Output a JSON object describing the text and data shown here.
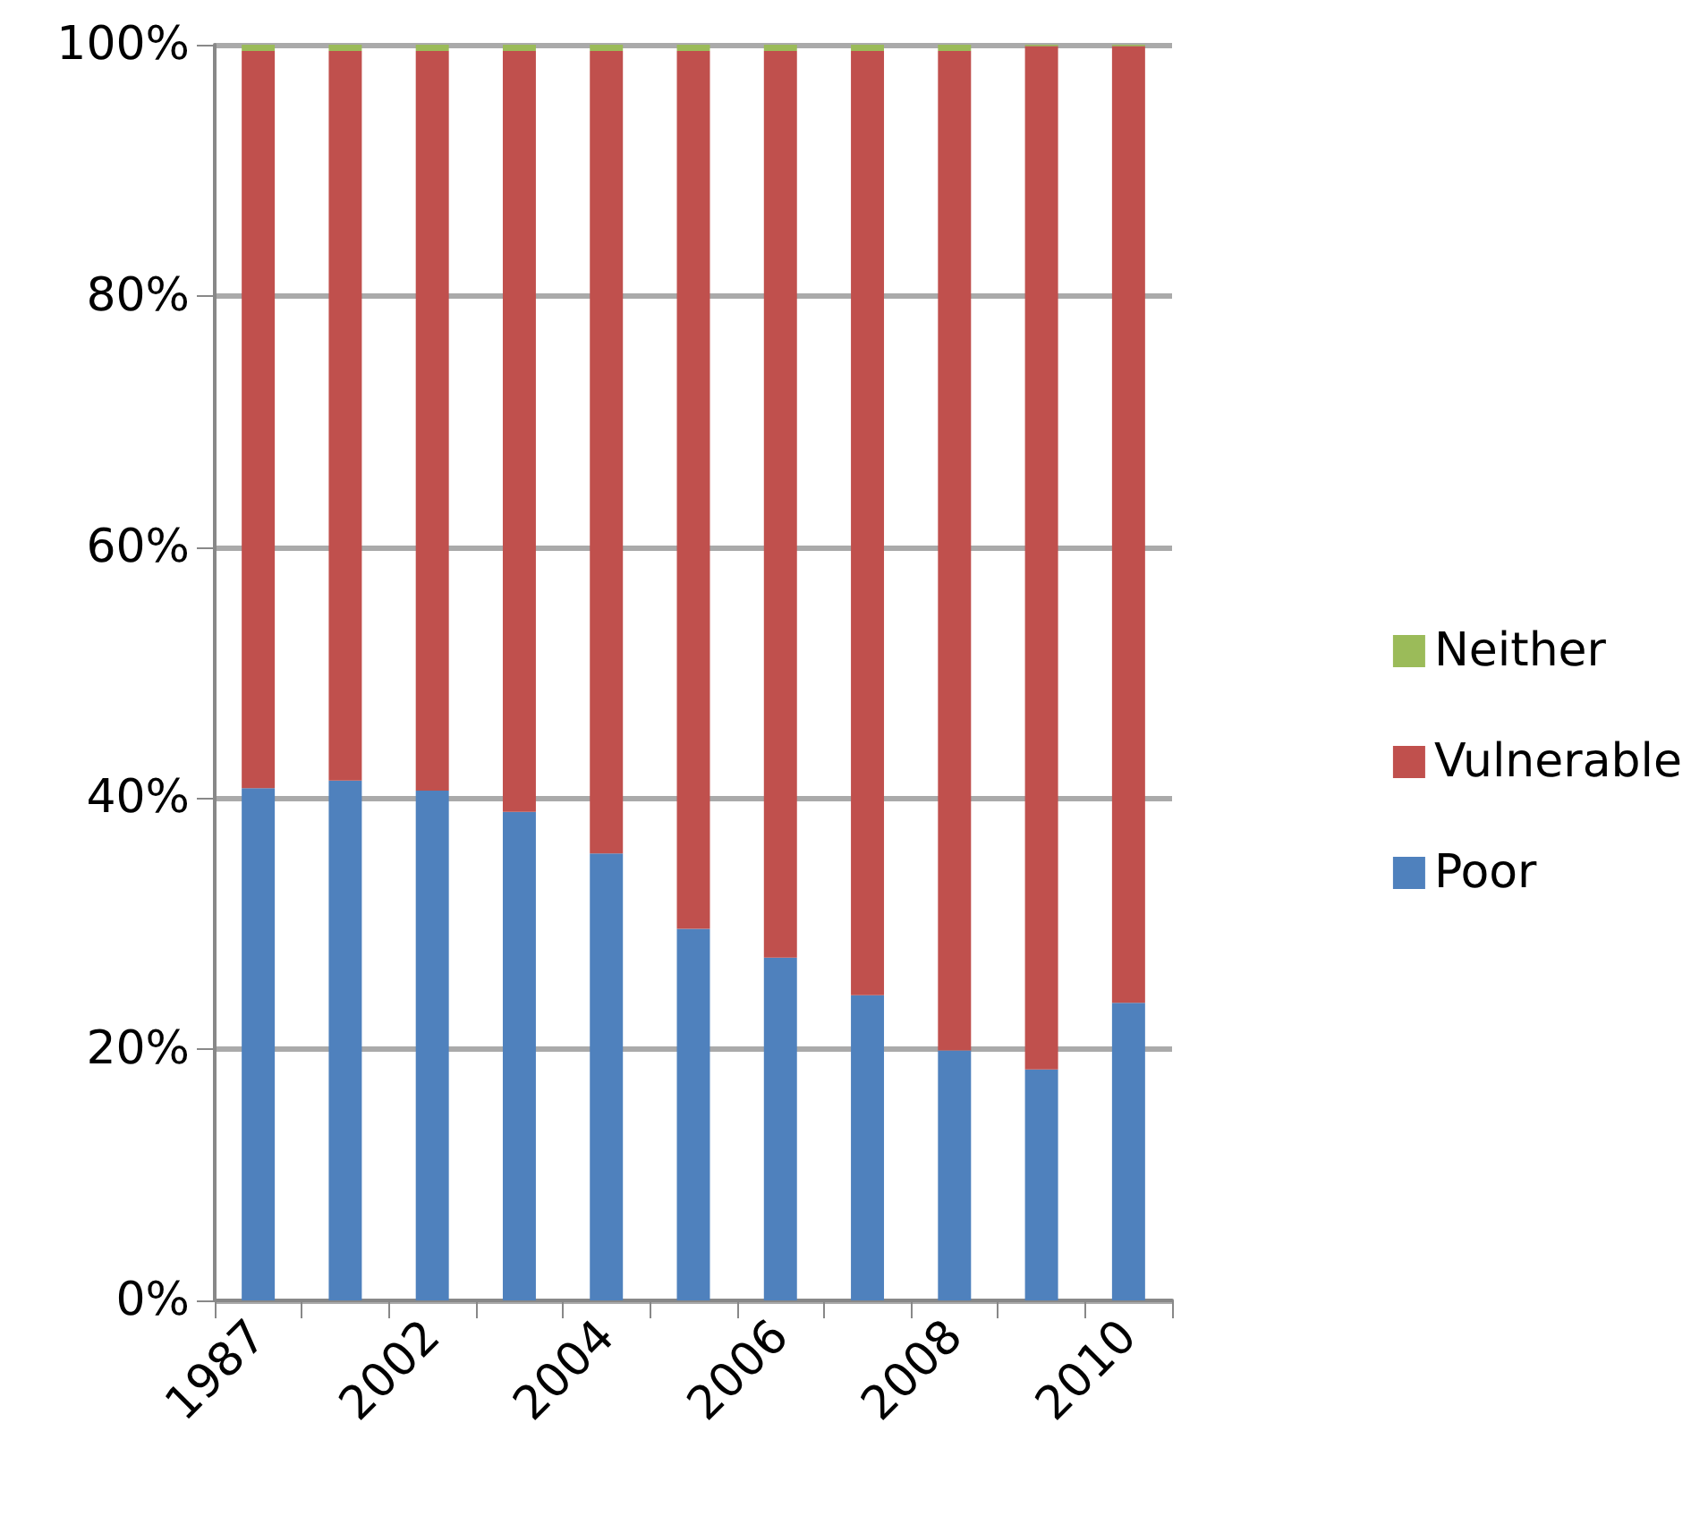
{
  "chart_data": {
    "type": "bar",
    "stacked": true,
    "categories": [
      "1987",
      null,
      "2002",
      null,
      "2004",
      null,
      "2006",
      null,
      "2008",
      null,
      "2010"
    ],
    "series": [
      {
        "name": "Poor",
        "color": "#4f81bd",
        "values": [
          40.8,
          41.4,
          40.6,
          38.9,
          35.6,
          29.6,
          27.3,
          24.3,
          19.9,
          18.4,
          23.7
        ]
      },
      {
        "name": "Vulnerable",
        "color": "#c0504d",
        "values": [
          58.7,
          58.1,
          58.9,
          60.6,
          63.9,
          69.9,
          72.2,
          75.2,
          79.6,
          81.5,
          76.2
        ]
      },
      {
        "name": "Neither",
        "color": "#9bbb59",
        "values": [
          0.5,
          0.5,
          0.5,
          0.5,
          0.5,
          0.5,
          0.5,
          0.5,
          0.5,
          0.1,
          0.1
        ]
      }
    ],
    "ylim": [
      0,
      100
    ],
    "yticks": [
      {
        "value": 0,
        "label": "0%"
      },
      {
        "value": 20,
        "label": "20%"
      },
      {
        "value": 40,
        "label": "40%"
      },
      {
        "value": 60,
        "label": "60%"
      },
      {
        "value": 80,
        "label": "80%"
      },
      {
        "value": 100,
        "label": "100%"
      }
    ],
    "grid": "y",
    "legend": "right"
  }
}
